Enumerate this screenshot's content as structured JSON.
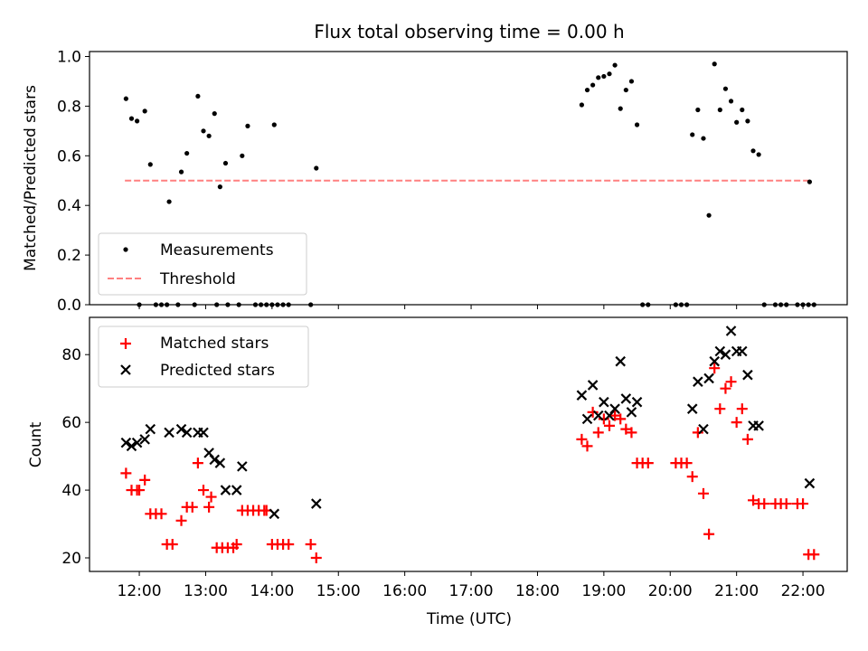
{
  "chart_data": [
    {
      "type": "scatter",
      "title": "Flux total observing time = 0.00 h",
      "xlabel": "",
      "ylabel": "Matched/Predicted stars",
      "ylim": [
        0,
        1.02
      ],
      "yticks": [
        0.0,
        0.2,
        0.4,
        0.6,
        0.8,
        1.0
      ],
      "ytick_labels": [
        "0.0",
        "0.2",
        "0.4",
        "0.6",
        "0.8",
        "1.0"
      ],
      "legend_position": "lower-left",
      "threshold": {
        "name": "Threshold",
        "y": 0.5,
        "x_start": "11:47",
        "x_end": "22:05",
        "color": "#ff8080"
      },
      "series": [
        {
          "name": "Measurements",
          "marker": "dot",
          "color": "#000000",
          "points": [
            [
              "11:48",
              0.83
            ],
            [
              "11:53",
              0.75
            ],
            [
              "11:58",
              0.74
            ],
            [
              "12:00",
              0.0
            ],
            [
              "12:05",
              0.78
            ],
            [
              "12:10",
              0.565
            ],
            [
              "12:15",
              0.0
            ],
            [
              "12:20",
              0.0
            ],
            [
              "12:25",
              0.0
            ],
            [
              "12:27",
              0.415
            ],
            [
              "12:35",
              0.0
            ],
            [
              "12:38",
              0.535
            ],
            [
              "12:43",
              0.61
            ],
            [
              "12:50",
              0.0
            ],
            [
              "12:53",
              0.84
            ],
            [
              "12:58",
              0.7
            ],
            [
              "13:03",
              0.68
            ],
            [
              "13:08",
              0.77
            ],
            [
              "13:10",
              0.0
            ],
            [
              "13:13",
              0.475
            ],
            [
              "13:18",
              0.57
            ],
            [
              "13:20",
              0.0
            ],
            [
              "13:30",
              0.0
            ],
            [
              "13:33",
              0.6
            ],
            [
              "13:38",
              0.72
            ],
            [
              "13:45",
              0.0
            ],
            [
              "13:50",
              0.0
            ],
            [
              "13:55",
              0.0
            ],
            [
              "14:00",
              0.0
            ],
            [
              "14:02",
              0.725
            ],
            [
              "14:05",
              0.0
            ],
            [
              "14:10",
              0.0
            ],
            [
              "14:15",
              0.0
            ],
            [
              "14:35",
              0.0
            ],
            [
              "14:40",
              0.55
            ],
            [
              "18:40",
              0.805
            ],
            [
              "18:45",
              0.865
            ],
            [
              "18:50",
              0.885
            ],
            [
              "18:55",
              0.915
            ],
            [
              "19:00",
              0.92
            ],
            [
              "19:05",
              0.93
            ],
            [
              "19:10",
              0.965
            ],
            [
              "19:15",
              0.79
            ],
            [
              "19:20",
              0.865
            ],
            [
              "19:25",
              0.9
            ],
            [
              "19:30",
              0.725
            ],
            [
              "19:35",
              0.0
            ],
            [
              "19:40",
              0.0
            ],
            [
              "20:05",
              0.0
            ],
            [
              "20:10",
              0.0
            ],
            [
              "20:15",
              0.0
            ],
            [
              "20:20",
              0.685
            ],
            [
              "20:25",
              0.785
            ],
            [
              "20:30",
              0.67
            ],
            [
              "20:35",
              0.36
            ],
            [
              "20:40",
              0.97
            ],
            [
              "20:45",
              0.785
            ],
            [
              "20:50",
              0.87
            ],
            [
              "20:55",
              0.82
            ],
            [
              "21:00",
              0.735
            ],
            [
              "21:05",
              0.785
            ],
            [
              "21:10",
              0.74
            ],
            [
              "21:15",
              0.62
            ],
            [
              "21:20",
              0.605
            ],
            [
              "21:25",
              0.0
            ],
            [
              "21:35",
              0.0
            ],
            [
              "21:40",
              0.0
            ],
            [
              "21:45",
              0.0
            ],
            [
              "21:55",
              0.0
            ],
            [
              "22:00",
              0.0
            ],
            [
              "22:05",
              0.0
            ],
            [
              "22:06",
              0.495
            ],
            [
              "22:10",
              0.0
            ]
          ]
        }
      ]
    },
    {
      "type": "scatter",
      "title": "",
      "xlabel": "Time (UTC)",
      "ylabel": "Count",
      "ylim": [
        16,
        91
      ],
      "yticks": [
        20,
        40,
        60,
        80
      ],
      "ytick_labels": [
        "20",
        "40",
        "60",
        "80"
      ],
      "xlim": [
        "11:15",
        "22:40"
      ],
      "xticks": [
        "12:00",
        "13:00",
        "14:00",
        "15:00",
        "16:00",
        "17:00",
        "18:00",
        "19:00",
        "20:00",
        "21:00",
        "22:00"
      ],
      "legend_position": "upper-left",
      "series": [
        {
          "name": "Matched stars",
          "marker": "plus",
          "color": "#ff0000",
          "points": [
            [
              "11:48",
              45
            ],
            [
              "11:53",
              40
            ],
            [
              "11:58",
              40
            ],
            [
              "12:00",
              40
            ],
            [
              "12:05",
              43
            ],
            [
              "12:10",
              33
            ],
            [
              "12:15",
              33
            ],
            [
              "12:20",
              33
            ],
            [
              "12:25",
              24
            ],
            [
              "12:30",
              24
            ],
            [
              "12:38",
              31
            ],
            [
              "12:43",
              35
            ],
            [
              "12:48",
              35
            ],
            [
              "12:53",
              48
            ],
            [
              "12:58",
              40
            ],
            [
              "13:03",
              35
            ],
            [
              "13:05",
              38
            ],
            [
              "13:10",
              23
            ],
            [
              "13:15",
              23
            ],
            [
              "13:20",
              23
            ],
            [
              "13:25",
              23
            ],
            [
              "13:28",
              24
            ],
            [
              "13:33",
              34
            ],
            [
              "13:38",
              34
            ],
            [
              "13:43",
              34
            ],
            [
              "13:48",
              34
            ],
            [
              "13:53",
              34
            ],
            [
              "13:55",
              34
            ],
            [
              "14:00",
              24
            ],
            [
              "14:05",
              24
            ],
            [
              "14:10",
              24
            ],
            [
              "14:15",
              24
            ],
            [
              "14:35",
              24
            ],
            [
              "14:40",
              20
            ],
            [
              "18:40",
              55
            ],
            [
              "18:45",
              53
            ],
            [
              "18:50",
              63
            ],
            [
              "18:55",
              57
            ],
            [
              "19:00",
              61
            ],
            [
              "19:05",
              59
            ],
            [
              "19:10",
              62
            ],
            [
              "19:15",
              61
            ],
            [
              "19:20",
              58
            ],
            [
              "19:25",
              57
            ],
            [
              "19:30",
              48
            ],
            [
              "19:35",
              48
            ],
            [
              "19:40",
              48
            ],
            [
              "20:05",
              48
            ],
            [
              "20:10",
              48
            ],
            [
              "20:15",
              48
            ],
            [
              "20:20",
              44
            ],
            [
              "20:25",
              57
            ],
            [
              "20:30",
              39
            ],
            [
              "20:35",
              27
            ],
            [
              "20:40",
              76
            ],
            [
              "20:45",
              64
            ],
            [
              "20:50",
              70
            ],
            [
              "20:55",
              72
            ],
            [
              "21:00",
              60
            ],
            [
              "21:05",
              64
            ],
            [
              "21:10",
              55
            ],
            [
              "21:15",
              37
            ],
            [
              "21:20",
              36
            ],
            [
              "21:25",
              36
            ],
            [
              "21:35",
              36
            ],
            [
              "21:40",
              36
            ],
            [
              "21:45",
              36
            ],
            [
              "21:55",
              36
            ],
            [
              "22:00",
              36
            ],
            [
              "22:05",
              21
            ],
            [
              "22:10",
              21
            ]
          ]
        },
        {
          "name": "Predicted stars",
          "marker": "x",
          "color": "#000000",
          "points": [
            [
              "11:48",
              54
            ],
            [
              "11:53",
              53
            ],
            [
              "11:58",
              54
            ],
            [
              "12:05",
              55
            ],
            [
              "12:10",
              58
            ],
            [
              "12:27",
              57
            ],
            [
              "12:38",
              58
            ],
            [
              "12:43",
              57
            ],
            [
              "12:53",
              57
            ],
            [
              "12:58",
              57
            ],
            [
              "13:03",
              51
            ],
            [
              "13:08",
              49
            ],
            [
              "13:13",
              48
            ],
            [
              "13:18",
              40
            ],
            [
              "13:28",
              40
            ],
            [
              "13:33",
              47
            ],
            [
              "14:02",
              33
            ],
            [
              "14:40",
              36
            ],
            [
              "18:40",
              68
            ],
            [
              "18:45",
              61
            ],
            [
              "18:50",
              71
            ],
            [
              "18:55",
              62
            ],
            [
              "19:00",
              66
            ],
            [
              "19:05",
              62
            ],
            [
              "19:10",
              64
            ],
            [
              "19:15",
              78
            ],
            [
              "19:20",
              67
            ],
            [
              "19:25",
              63
            ],
            [
              "19:30",
              66
            ],
            [
              "20:20",
              64
            ],
            [
              "20:25",
              72
            ],
            [
              "20:30",
              58
            ],
            [
              "20:35",
              73
            ],
            [
              "20:40",
              78
            ],
            [
              "20:45",
              81
            ],
            [
              "20:50",
              80
            ],
            [
              "20:55",
              87
            ],
            [
              "21:00",
              81
            ],
            [
              "21:05",
              81
            ],
            [
              "21:10",
              74
            ],
            [
              "21:15",
              59
            ],
            [
              "21:20",
              59
            ],
            [
              "22:06",
              42
            ]
          ]
        }
      ]
    }
  ]
}
